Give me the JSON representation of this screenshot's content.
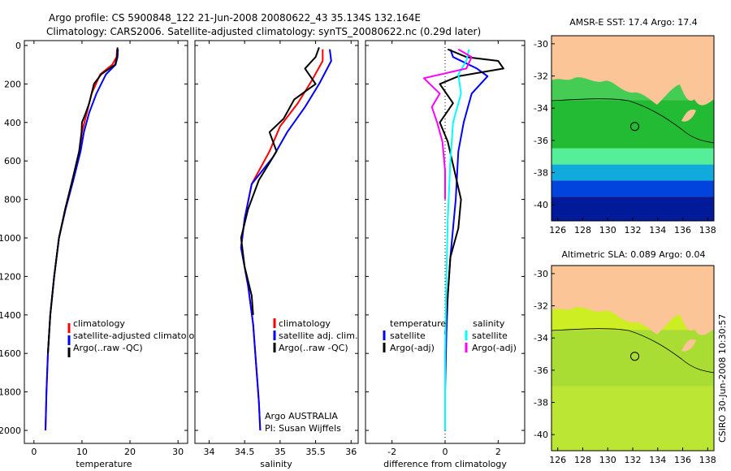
{
  "header": {
    "line1": "Argo profile: CS 5900848_122 21-Jun-2008 20080622_43 35.134S 132.164E",
    "line2": "Climatology: CARS2006. Satellite-adjusted climatology: synTS_20080622.nc (0.29d later)"
  },
  "side_label": "CSIRO 30-Jun-2008 10:30:57",
  "colors": {
    "climatology": "#ff0000",
    "satellite": "#0000ff",
    "argo": "#000000",
    "sat_salinity": "#00ffff",
    "argo_salinity": "#ff00ff",
    "land": "#fbc597"
  },
  "chart_data": [
    {
      "type": "line",
      "id": "temperature",
      "xlabel": "temperature",
      "ylabel": "",
      "xlim": [
        -2,
        32
      ],
      "ylim": [
        2060,
        0
      ],
      "xticks": [
        0,
        10,
        20,
        30
      ],
      "yticks": [
        0,
        200,
        400,
        600,
        800,
        1000,
        1200,
        1400,
        1600,
        1800,
        2000
      ],
      "legend": [
        "climatology",
        "satellite-adjusted climatology",
        "Argo(..raw -QC)"
      ],
      "series": [
        {
          "name": "climatology",
          "color": "#ff0000",
          "x": [
            17.3,
            17.2,
            16.3,
            13.8,
            12.0,
            11.0,
            10.0,
            9.5,
            8.0,
            6.5,
            5.2,
            4.2,
            3.4,
            2.9,
            2.6,
            2.4
          ],
          "y": [
            20,
            60,
            100,
            150,
            250,
            350,
            450,
            550,
            700,
            850,
            1000,
            1200,
            1400,
            1600,
            1800,
            2000
          ]
        },
        {
          "name": "satellite-adjusted climatology",
          "color": "#0000ff",
          "x": [
            17.5,
            17.4,
            17.0,
            15.0,
            13.0,
            11.5,
            10.4,
            9.7,
            8.2,
            6.6,
            5.2,
            4.2,
            3.4,
            2.9,
            2.6,
            2.4
          ],
          "y": [
            20,
            60,
            100,
            150,
            250,
            350,
            450,
            550,
            700,
            850,
            1000,
            1200,
            1400,
            1600,
            1800,
            2000
          ]
        },
        {
          "name": "Argo(..raw -QC)",
          "color": "#000000",
          "x": [
            17.4,
            17.3,
            16.9,
            14.0,
            12.5,
            11.5,
            10.8,
            10.0,
            9.9,
            9.4,
            8.0,
            6.5,
            5.2,
            4.2,
            3.4,
            2.9
          ],
          "y": [
            10,
            60,
            100,
            150,
            200,
            300,
            350,
            400,
            450,
            550,
            700,
            850,
            1000,
            1200,
            1400,
            1600
          ]
        }
      ]
    },
    {
      "type": "line",
      "id": "salinity",
      "xlabel": "salinity",
      "ylabel": "",
      "xlim": [
        33.8,
        36.1
      ],
      "ylim": [
        2060,
        0
      ],
      "xticks": [
        34,
        34.5,
        35,
        35.5,
        36
      ],
      "yticks": [],
      "legend": [
        "climatology",
        "satellite adj. clim.",
        "Argo(..raw -QC)"
      ],
      "annotations": [
        "Argo AUSTRALIA",
        "PI: Susan Wijffels"
      ],
      "series": [
        {
          "name": "climatology",
          "color": "#ff0000",
          "x": [
            35.6,
            35.6,
            35.45,
            35.25,
            35.0,
            34.85,
            34.6,
            34.5,
            34.45,
            34.55,
            34.62,
            34.66,
            34.7,
            34.72
          ],
          "y": [
            20,
            80,
            180,
            300,
            420,
            550,
            720,
            900,
            1050,
            1250,
            1450,
            1650,
            1850,
            2000
          ]
        },
        {
          "name": "satellite adj. clim.",
          "color": "#0000ff",
          "x": [
            35.7,
            35.72,
            35.55,
            35.35,
            35.1,
            34.9,
            34.6,
            34.5,
            34.45,
            34.55,
            34.62,
            34.66,
            34.7,
            34.72
          ],
          "y": [
            20,
            80,
            200,
            320,
            450,
            580,
            720,
            900,
            1050,
            1250,
            1450,
            1650,
            1850,
            2000
          ]
        },
        {
          "name": "Argo(..raw -QC)",
          "color": "#000000",
          "x": [
            35.55,
            35.5,
            35.35,
            35.5,
            35.2,
            35.05,
            34.85,
            34.95,
            34.7,
            34.55,
            34.45,
            34.5,
            34.6,
            34.62
          ],
          "y": [
            10,
            60,
            120,
            200,
            280,
            380,
            450,
            550,
            700,
            850,
            1000,
            1150,
            1300,
            1400
          ]
        }
      ]
    },
    {
      "type": "line",
      "id": "difference",
      "xlabel": "difference from climatology",
      "ylabel": "",
      "xlim": [
        -3,
        3
      ],
      "ylim": [
        2060,
        0
      ],
      "xticks": [
        -2,
        0,
        2
      ],
      "yticks": [],
      "legend": [
        "temperature",
        "satellite",
        "Argo(-adj)",
        "salinity",
        "satellite",
        "Argo(-adj)"
      ],
      "series": [
        {
          "name": "satellite",
          "color": "#0000ff",
          "x": [
            0.2,
            0.3,
            1.2,
            1.6,
            1.0,
            0.7,
            0.5,
            0.4,
            0.3,
            0.2,
            0.1,
            0.05,
            0.0,
            0.0
          ],
          "y": [
            20,
            60,
            120,
            160,
            250,
            400,
            550,
            800,
            950,
            1100,
            1300,
            1500,
            1800,
            2000
          ]
        },
        {
          "name": "Argo(-adj)",
          "color": "#000000",
          "x": [
            0.1,
            0.8,
            2.0,
            2.2,
            0.5,
            -0.2,
            0.3,
            -0.2,
            0.1,
            0.6,
            0.5,
            0.2,
            0.1,
            0.0
          ],
          "y": [
            20,
            60,
            80,
            120,
            160,
            200,
            300,
            400,
            500,
            800,
            950,
            1100,
            1300,
            1500
          ]
        },
        {
          "name": "satellite (salinity)",
          "color": "#00ffff",
          "x": [
            0.9,
            0.8,
            0.5,
            0.6,
            0.3,
            0.2,
            0.1,
            0.05,
            0.0,
            0.0
          ],
          "y": [
            20,
            80,
            150,
            250,
            400,
            600,
            900,
            1200,
            1600,
            2000
          ]
        },
        {
          "name": "Argo(-adj) (salinity)",
          "color": "#ff00ff",
          "x": [
            0.5,
            1.0,
            0.8,
            -0.8,
            -0.2,
            -0.5,
            -0.3,
            -0.1,
            0.0,
            0.0
          ],
          "y": [
            20,
            60,
            120,
            170,
            250,
            320,
            400,
            500,
            650,
            800
          ]
        }
      ]
    },
    {
      "type": "heatmap",
      "id": "sst_map",
      "title": "AMSR-E SST: 17.4 Argo: 17.4",
      "xlim": [
        125.5,
        138.5
      ],
      "ylim": [
        -41,
        -29.5
      ],
      "xticks": [
        126,
        128,
        130,
        132,
        134,
        136,
        138
      ],
      "yticks": [
        -30,
        -32,
        -34,
        -36,
        -38,
        -40
      ],
      "marker": {
        "lon": 132.164,
        "lat": -35.134
      },
      "bands": [
        {
          "lat_min": -33.5,
          "lat_max": -32.0,
          "color": "#44cc55"
        },
        {
          "lat_min": -36.5,
          "lat_max": -33.5,
          "color": "#22bb33"
        },
        {
          "lat_min": -37.5,
          "lat_max": -36.5,
          "color": "#55ee99"
        },
        {
          "lat_min": -38.5,
          "lat_max": -37.5,
          "color": "#11aadd"
        },
        {
          "lat_min": -39.5,
          "lat_max": -38.5,
          "color": "#0044dd"
        },
        {
          "lat_min": -41.0,
          "lat_max": -39.5,
          "color": "#001a99"
        }
      ]
    },
    {
      "type": "heatmap",
      "id": "sla_map",
      "title": "Altimetric SLA: 0.089 Argo: 0.04",
      "xlim": [
        125.5,
        138.5
      ],
      "ylim": [
        -41,
        -29.5
      ],
      "xticks": [
        126,
        128,
        130,
        132,
        134,
        136,
        138
      ],
      "yticks": [
        -30,
        -32,
        -34,
        -36,
        -38,
        -40
      ],
      "marker": {
        "lon": 132.164,
        "lat": -35.134
      },
      "bands": [
        {
          "lat_min": -33.5,
          "lat_max": -32.0,
          "color": "#ccee22"
        },
        {
          "lat_min": -37.0,
          "lat_max": -33.5,
          "color": "#aadd33"
        },
        {
          "lat_min": -41.0,
          "lat_max": -37.0,
          "color": "#bbe633"
        }
      ]
    }
  ]
}
